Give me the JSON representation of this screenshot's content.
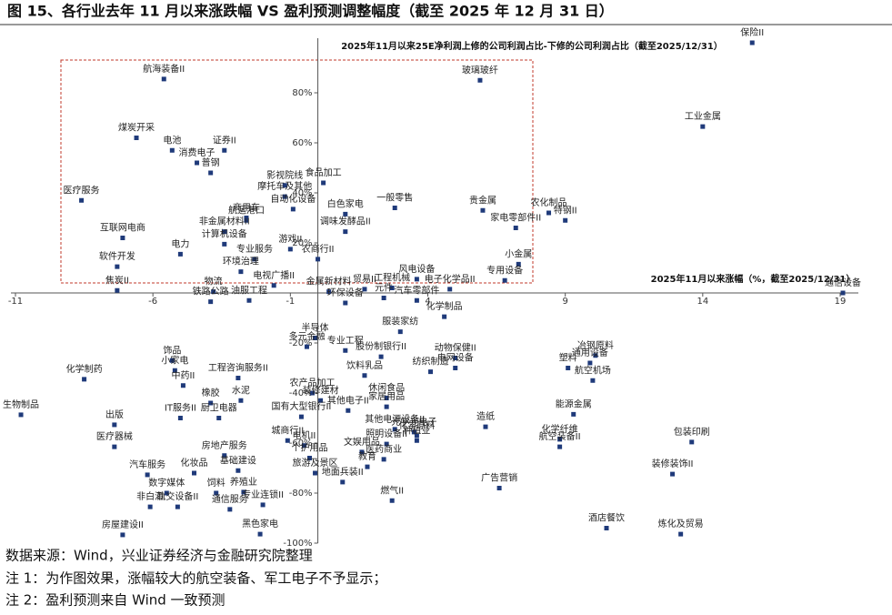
{
  "chart_data": {
    "type": "scatter",
    "title": "图 15、各行业去年 11 月以来涨跌幅 VS 盈利预测调整幅度（截至 2025 年 12 月 31 日）",
    "y_label": "2025年11月以来25E净利润上修的公司利润占比-下修的公司利润占比（截至2025/12/31）",
    "x_label": "2025年11月以来涨幅（%，截至2025/12/31）",
    "color": "#1f3a7a",
    "xlim": [
      -11,
      19
    ],
    "xticks": [
      -11,
      -6,
      -1,
      4,
      9,
      14,
      19
    ],
    "ylim": [
      -100,
      100
    ],
    "yticks": [
      {
        "value": -100,
        "label": "-100%"
      },
      {
        "value": -80,
        "label": "-80%"
      },
      {
        "value": -60,
        "label": "-60%"
      },
      {
        "value": -40,
        "label": "-40%"
      },
      {
        "value": -20,
        "label": "-20%"
      },
      {
        "value": 20,
        "label": "20%"
      },
      {
        "value": 40,
        "label": "40%"
      },
      {
        "value": 60,
        "label": "60%"
      },
      {
        "value": 80,
        "label": "80%"
      }
    ],
    "point_labels": [
      "保险II",
      "航海装备II",
      "玻璃玻纤",
      "工业金属",
      "煤炭开采",
      "电池",
      "证券II",
      "消费电子",
      "普钢",
      "影视院线",
      "食品加工",
      "医疗服务",
      "摩托车及其他",
      "自动化设备",
      "白色家电",
      "一般零售",
      "贵金属",
      "农化制品",
      "特钢II",
      "家电零部件II",
      "商用车",
      "航运港口",
      "非金属材料II",
      "调味发酵品II",
      "互联网电商",
      "计算机设备",
      "电力",
      "专业服务",
      "游戏II",
      "农商行II",
      "软件开发",
      "环境治理",
      "电视广播II",
      "小金属",
      "风电设备",
      "专用设备",
      "电子化学品II",
      "焦炭II",
      "物流",
      "工程机械",
      "金属新材料",
      "贸易II",
      "通信设备",
      "铁路公路",
      "油服工程",
      "环保设备",
      "元件",
      "汽车零部件",
      "化学制品",
      "服装家纺",
      "半导体",
      "专业工程",
      "多元金融",
      "股份制银行II",
      "动物保健II",
      "冶钢原料",
      "饰品",
      "通用设备",
      "饮料乳品",
      "塑料",
      "纺织制造",
      "电网设备",
      "化学制药",
      "小家电",
      "工程咨询服务II",
      "航空机场",
      "中药II",
      "农产品加工",
      "休闲食品",
      "橡胶",
      "水泥",
      "装修建材",
      "生物制品",
      "家居用品",
      "能源金属",
      "出版",
      "IT服务II",
      "厨卫电器",
      "国有大型银行II",
      "其他电子II",
      "造纸",
      "其他电源设备II",
      "光学光电子",
      "化学原料",
      "化学纤维",
      "医疗器械",
      "城商行II",
      "电机II",
      "照明设备II",
      "种植业",
      "航空装备II",
      "包装印刷",
      "房地产服务",
      "文娱用品",
      "个护用品",
      "医药商业",
      "汽车服务",
      "化妆品",
      "基础建设",
      "旅游及景区",
      "教育",
      "广告营销",
      "装修装饰II",
      "数字媒体",
      "饲料",
      "养殖业",
      "地面兵装II",
      "燃气II",
      "非白酒",
      "轨交设备II",
      "通信服务",
      "专业连锁II",
      "酒店餐饮",
      "房屋建设II",
      "黑色家电",
      "炼化及贸易"
    ],
    "x": [
      15.8,
      -5.6,
      5.9,
      14.0,
      -6.6,
      -5.3,
      -3.4,
      -4.4,
      -3.9,
      -1.2,
      0.2,
      -8.6,
      -1.2,
      -0.9,
      1.0,
      2.8,
      6.0,
      8.4,
      9.0,
      7.2,
      -2.6,
      -2.6,
      -3.4,
      1.0,
      -7.1,
      -3.4,
      -5.0,
      -2.3,
      -1.0,
      0,
      -7.3,
      -2.8,
      -1.6,
      7.3,
      3.6,
      6.8,
      4.8,
      -7.3,
      -3.8,
      2.7,
      0.4,
      1.7,
      19.1,
      -3.9,
      -2.5,
      1.0,
      2.4,
      3.6,
      4.6,
      3.0,
      -0.1,
      1.0,
      -0.4,
      2.3,
      5.0,
      10.1,
      -5.3,
      9.9,
      1.7,
      9.1,
      4.1,
      5.0,
      -8.5,
      -5.2,
      -2.9,
      10.0,
      -4.9,
      -0.2,
      2.5,
      -3.9,
      -2.8,
      0.1,
      -10.8,
      2.5,
      9.3,
      -7.4,
      -5.0,
      -3.6,
      -0.6,
      1.1,
      6.1,
      2.8,
      3.5,
      3.6,
      8.8,
      -7.4,
      -1.1,
      -0.5,
      2.5,
      3.6,
      8.8,
      13.6,
      -3.4,
      1.6,
      -0.3,
      2.4,
      -6.2,
      -4.5,
      -2.9,
      -0.1,
      1.8,
      6.6,
      12.9,
      -5.5,
      -3.7,
      -2.7,
      0.9,
      2.7,
      -6.1,
      -5.1,
      -3.2,
      -2.0,
      10.5,
      -7.1,
      -2.1,
      13.2
    ],
    "values": [
      100,
      85.5,
      85,
      66.5,
      62,
      57,
      57,
      52,
      48,
      43,
      44,
      37,
      38.5,
      33.5,
      31.5,
      34,
      33,
      32,
      29,
      26,
      30,
      29,
      24.5,
      24.5,
      22,
      19.5,
      15.5,
      13.5,
      17.5,
      13.5,
      10.5,
      8.5,
      3,
      11.5,
      5.5,
      5,
      1.5,
      1,
      0.5,
      2,
      0.5,
      1.5,
      0,
      -3.5,
      -3,
      -4,
      -2,
      -3,
      -9.5,
      -15.5,
      -18,
      -23,
      -21.5,
      -25.5,
      -26,
      -25,
      -27,
      -28,
      -33,
      -30,
      -31.5,
      -30,
      -34.5,
      -31,
      -34,
      -35,
      -37,
      -40,
      -42,
      -44,
      -43,
      -43,
      -48.7,
      -45.5,
      -48.5,
      -52.7,
      -50,
      -50,
      -49.5,
      -47,
      -53.5,
      -54.5,
      -55.6,
      -57,
      -58.5,
      -61.5,
      -59,
      -61,
      -60.4,
      -59,
      -61.5,
      -59.6,
      -65,
      -63.6,
      -66,
      -66.5,
      -72.7,
      -72,
      -71,
      -72,
      -69.5,
      -78,
      -72.4,
      -80,
      -80,
      -79.6,
      -75.6,
      -83,
      -85.5,
      -85.5,
      -86.5,
      -84.7,
      -94,
      -96.7,
      -96.4,
      -96.4
    ]
  },
  "notes": [
    "数据来源：Wind，兴业证券经济与金融研究院整理",
    "注 1：为作图效果，涨幅较大的航空装备、军工电子不予显示；",
    "注 2：盈利预测来自 Wind 一致预测"
  ]
}
